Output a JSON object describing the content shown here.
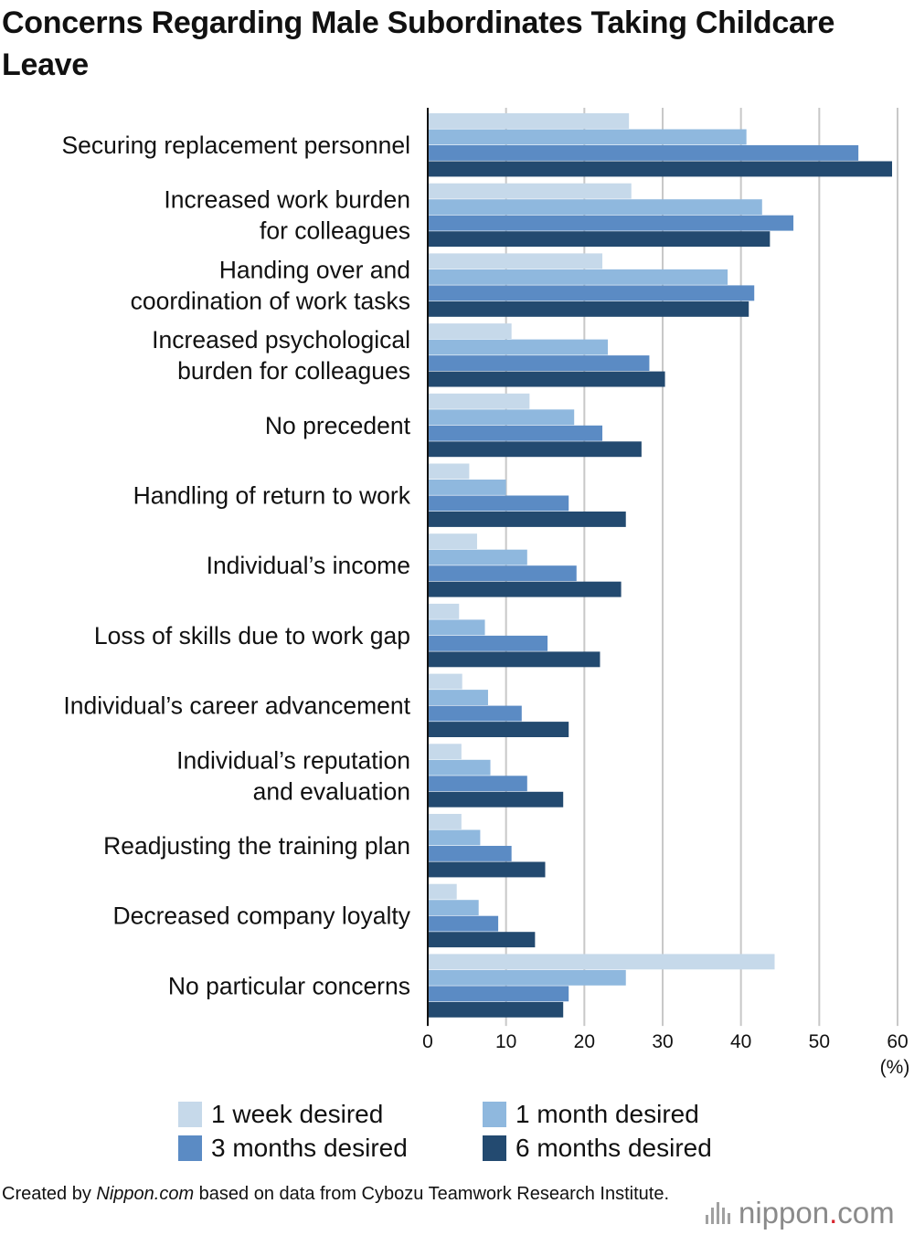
{
  "title": "Concerns Regarding Male Subordinates Taking Childcare Leave",
  "footer": {
    "prefix": "Created by ",
    "source_italic": "Nippon.com",
    "suffix": " based on data from Cybozu Teamwork Research Institute."
  },
  "logo": {
    "name": "nippon",
    "dot": ".",
    "tld": "com",
    "icon": "sound-bars-icon"
  },
  "colors": {
    "1w": "#c6d9ea",
    "1m": "#8fb8de",
    "3m": "#5b8bc4",
    "6m": "#234a70",
    "grid": "#c8c8c8",
    "axis": "#111111"
  },
  "chart_data": {
    "type": "bar",
    "orientation": "horizontal",
    "title": "Concerns Regarding Male Subordinates Taking Childcare Leave",
    "xlabel": "(%)",
    "xlim": [
      0,
      60
    ],
    "xticks": [
      0,
      10,
      20,
      30,
      40,
      50,
      60
    ],
    "grid": true,
    "legend_position": "bottom",
    "categories": [
      [
        "Securing replacement personnel"
      ],
      [
        "Increased work burden",
        "for colleagues"
      ],
      [
        "Handing over and",
        "coordination of work tasks"
      ],
      [
        "Increased psychological",
        "burden for colleagues"
      ],
      [
        "No precedent"
      ],
      [
        "Handling of return to work"
      ],
      [
        "Individual’s income"
      ],
      [
        "Loss of skills due to work gap"
      ],
      [
        "Individual’s career advancement"
      ],
      [
        "Individual’s reputation",
        "and evaluation"
      ],
      [
        "Readjusting the training plan"
      ],
      [
        "Decreased company loyalty"
      ],
      [
        "No particular concerns"
      ]
    ],
    "series": [
      {
        "name": "1 week desired",
        "color": "#c6d9ea",
        "values": [
          25.7,
          26.0,
          22.3,
          10.7,
          13.0,
          5.3,
          6.3,
          4.0,
          4.4,
          4.3,
          4.3,
          3.7,
          44.3
        ]
      },
      {
        "name": "1 month desired",
        "color": "#8fb8de",
        "values": [
          40.7,
          42.7,
          38.3,
          23.0,
          18.7,
          10.0,
          12.7,
          7.3,
          7.7,
          8.0,
          6.7,
          6.5,
          25.3
        ]
      },
      {
        "name": "3 months desired",
        "color": "#5b8bc4",
        "values": [
          55.0,
          46.7,
          41.7,
          28.3,
          22.3,
          18.0,
          19.0,
          15.3,
          12.0,
          12.7,
          10.7,
          9.0,
          18.0
        ]
      },
      {
        "name": "6 months desired",
        "color": "#234a70",
        "values": [
          59.3,
          43.7,
          41.0,
          30.3,
          27.3,
          25.3,
          24.7,
          22.0,
          18.0,
          17.3,
          15.0,
          13.7,
          17.3
        ]
      }
    ]
  }
}
